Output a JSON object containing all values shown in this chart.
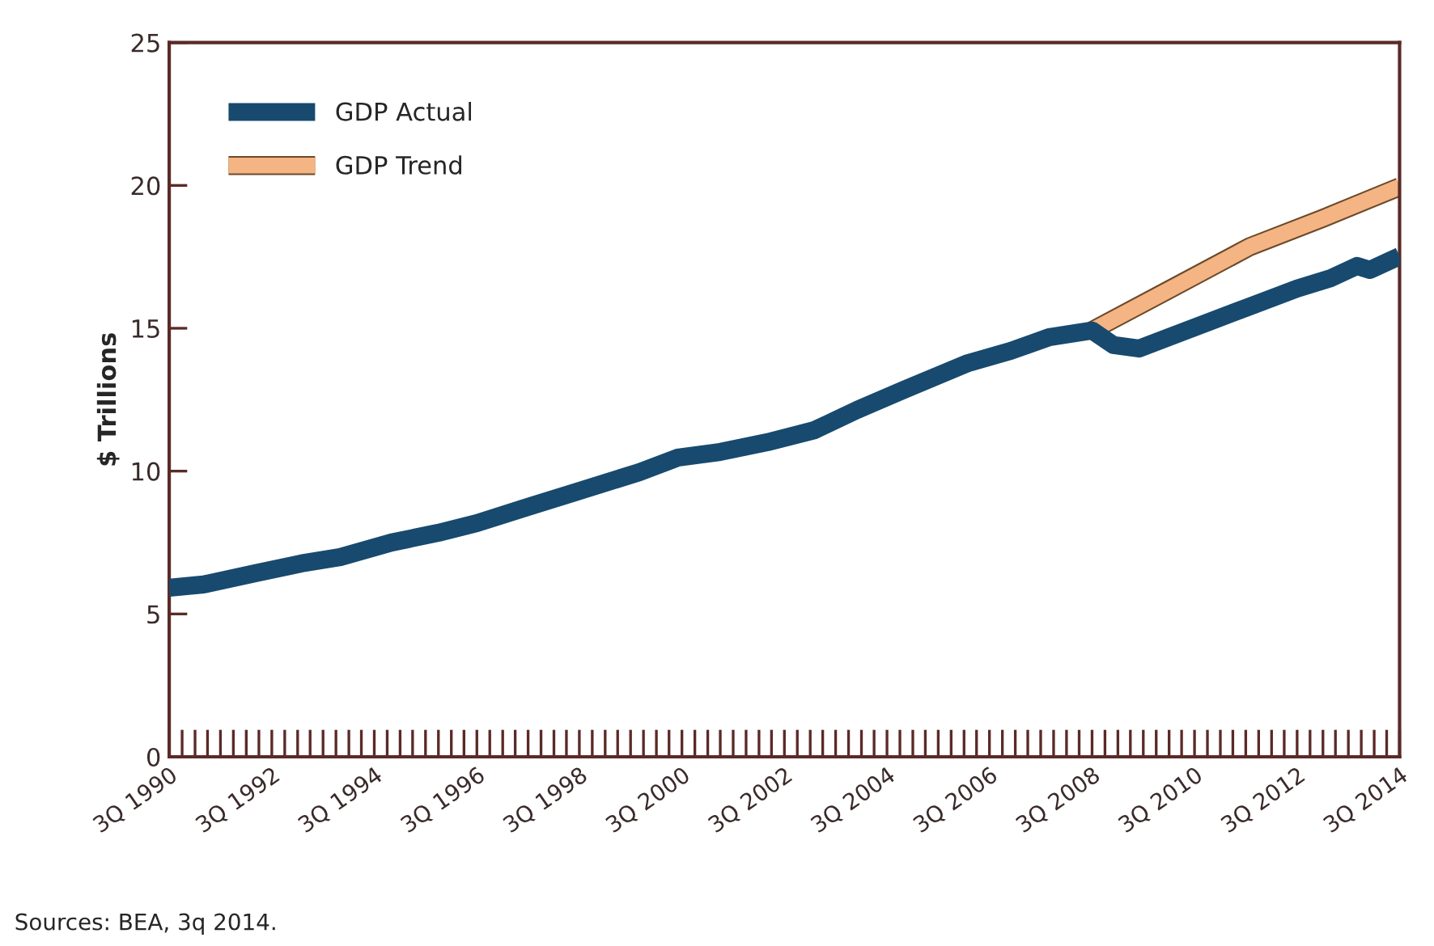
{
  "chart_data": {
    "type": "line",
    "ylabel": "$ Trillions",
    "annotations": [
      "Sources: BEA, 3q 2014."
    ],
    "xlim": [
      "1990-08",
      "2014-08"
    ],
    "xticks": [
      {
        "value": "1990-08",
        "label": "3Q 1990"
      },
      {
        "value": "1992-08",
        "label": "3Q 1992"
      },
      {
        "value": "1994-08",
        "label": "3Q 1994"
      },
      {
        "value": "1996-08",
        "label": "3Q 1996"
      },
      {
        "value": "1998-08",
        "label": "3Q 1998"
      },
      {
        "value": "2000-08",
        "label": "3Q 2000"
      },
      {
        "value": "2002-08",
        "label": "3Q 2002"
      },
      {
        "value": "2004-08",
        "label": "3Q 2004"
      },
      {
        "value": "2006-08",
        "label": "3Q 2006"
      },
      {
        "value": "2008-08",
        "label": "3Q 2008"
      },
      {
        "value": "2010-08",
        "label": "3Q 2010"
      },
      {
        "value": "2012-08",
        "label": "3Q 2012"
      },
      {
        "value": "2014-08",
        "label": "3Q 2014"
      }
    ],
    "ylim": [
      0,
      25
    ],
    "yticks": [
      0,
      5,
      10,
      15,
      20,
      25
    ],
    "legend": "top left",
    "grid": false,
    "marker": "none",
    "line_style": "solid",
    "series": [
      {
        "name": "GDP Actual",
        "color": "#174a6e",
        "x": [
          "1990-08",
          "1991-04",
          "1992-04",
          "1993-03",
          "1993-12",
          "1994-12",
          "1995-11",
          "1996-08",
          "1997-08",
          "1998-07",
          "1999-10",
          "2000-07",
          "2001-05",
          "2002-04",
          "2003-03",
          "2004-01",
          "2004-12",
          "2006-03",
          "2007-01",
          "2007-10",
          "2008-08",
          "2009-01",
          "2009-07",
          "2010-02",
          "2010-12",
          "2011-09",
          "2012-08",
          "2013-04",
          "2013-10",
          "2014-01",
          "2014-08"
        ],
        "values": [
          5.92,
          6.03,
          6.42,
          6.77,
          6.99,
          7.5,
          7.84,
          8.18,
          8.75,
          9.26,
          9.96,
          10.47,
          10.67,
          11.01,
          11.43,
          12.14,
          12.85,
          13.78,
          14.21,
          14.69,
          14.92,
          14.41,
          14.29,
          14.69,
          15.26,
          15.77,
          16.39,
          16.76,
          17.18,
          17.04,
          17.52
        ]
      },
      {
        "name": "GDP Trend",
        "color": "#f5b483",
        "x": [
          "2008-08",
          "2010-02",
          "2011-09",
          "2013-02",
          "2014-08"
        ],
        "values": [
          14.92,
          16.35,
          17.86,
          18.85,
          19.95
        ]
      }
    ]
  }
}
